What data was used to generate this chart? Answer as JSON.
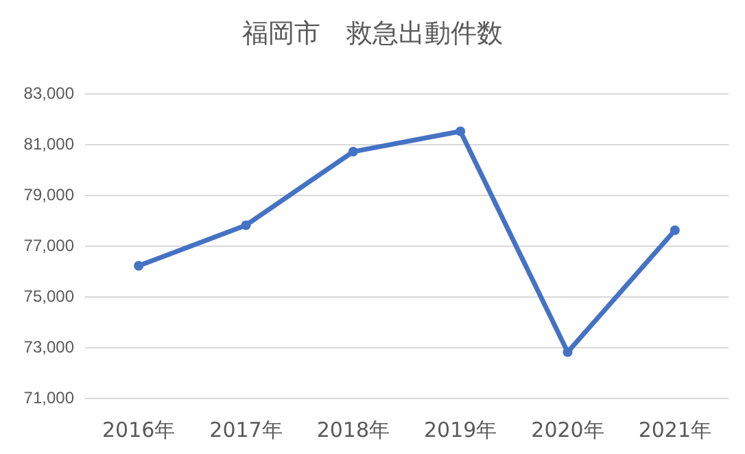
{
  "chart_data": {
    "type": "line",
    "title": "福岡市　救急出動件数",
    "categories": [
      "2016年",
      "2017年",
      "2018年",
      "2019年",
      "2020年",
      "2021年"
    ],
    "series": [
      {
        "color": "#4472c4",
        "values": [
          76200,
          77800,
          80700,
          81500,
          72800,
          77600
        ]
      }
    ],
    "ylim": [
      71000,
      83000
    ],
    "yticks": [
      {
        "value": 71000,
        "label": "71,000"
      },
      {
        "value": 73000,
        "label": "73,000"
      },
      {
        "value": 75000,
        "label": "75,000"
      },
      {
        "value": 77000,
        "label": "77,000"
      },
      {
        "value": 79000,
        "label": "79,000"
      },
      {
        "value": 81000,
        "label": "81,000"
      },
      {
        "value": 83000,
        "label": "83,000"
      }
    ],
    "grid": "y",
    "marker": "circle",
    "line_style": "solid"
  }
}
